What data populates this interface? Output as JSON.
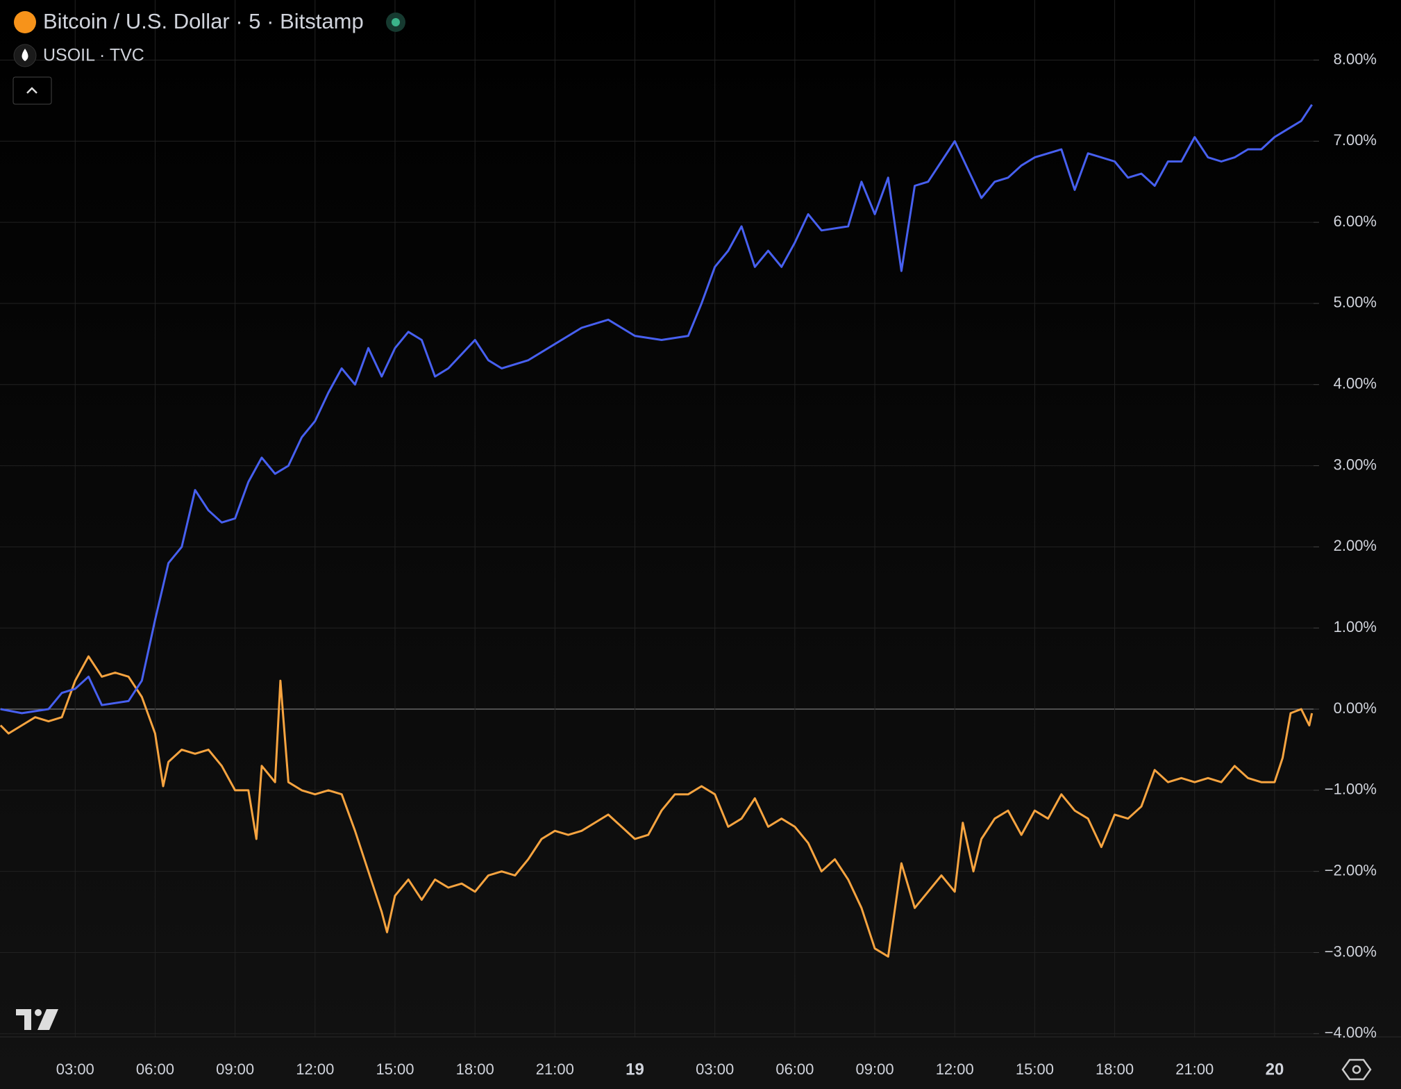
{
  "chart_data": {
    "type": "line",
    "legend": [
      "Bitcoin / U.S. Dollar · 5 · Bitstamp",
      "USOIL · TVC"
    ],
    "series": [
      {
        "name": "Bitcoin / U.S. Dollar · 5 · Bitstamp",
        "color": "#4760f0",
        "x": [
          0.2,
          1,
          2,
          2.5,
          3,
          3.5,
          4,
          5,
          5.5,
          6,
          6.5,
          7,
          7.5,
          8,
          8.5,
          9,
          9.5,
          10,
          10.5,
          11,
          11.5,
          12,
          12.5,
          13,
          13.5,
          14,
          14.5,
          15,
          15.5,
          16,
          16.5,
          17,
          18,
          18.5,
          19,
          20,
          21,
          22,
          23,
          24,
          25,
          26,
          26.5,
          27,
          27.5,
          28,
          28.5,
          29,
          29.5,
          30,
          30.5,
          31,
          32,
          32.5,
          33,
          33.5,
          34,
          34.5,
          35,
          35.5,
          36,
          36.5,
          37,
          37.5,
          38,
          38.5,
          39,
          39.5,
          40,
          40.5,
          41,
          42,
          42.5,
          43,
          43.5,
          44,
          44.5,
          45,
          45.5,
          46,
          46.5,
          47,
          47.5,
          48,
          48.5,
          49,
          49.4
        ],
        "values": [
          0,
          -0.05,
          0,
          0.2,
          0.25,
          0.4,
          0.05,
          0.1,
          0.35,
          1.1,
          1.8,
          2.0,
          2.7,
          2.45,
          2.3,
          2.35,
          2.8,
          3.1,
          2.9,
          3.0,
          3.35,
          3.55,
          3.9,
          4.2,
          4.0,
          4.45,
          4.1,
          4.45,
          4.65,
          4.55,
          4.1,
          4.2,
          4.55,
          4.3,
          4.2,
          4.3,
          4.5,
          4.7,
          4.8,
          4.6,
          4.55,
          4.6,
          5.0,
          5.45,
          5.65,
          5.95,
          5.45,
          5.65,
          5.45,
          5.75,
          6.1,
          5.9,
          5.95,
          6.5,
          6.1,
          6.55,
          5.4,
          6.45,
          6.5,
          6.75,
          7.0,
          6.65,
          6.3,
          6.5,
          6.55,
          6.7,
          6.8,
          6.85,
          6.9,
          6.4,
          6.85,
          6.75,
          6.55,
          6.6,
          6.45,
          6.75,
          6.75,
          7.05,
          6.8,
          6.75,
          6.8,
          6.9,
          6.9,
          7.05,
          7.15,
          7.25,
          7.45
        ]
      },
      {
        "name": "USOIL · TVC",
        "color": "#f7a440",
        "x": [
          0.2,
          0.5,
          1,
          1.5,
          2,
          2.5,
          3,
          3.5,
          4,
          4.5,
          5,
          5.5,
          6,
          6.3,
          6.5,
          7,
          7.5,
          8,
          8.5,
          9,
          9.5,
          9.8,
          10,
          10.5,
          10.7,
          11,
          11.5,
          12,
          12.5,
          13,
          13.5,
          14,
          14.5,
          14.7,
          15,
          15.5,
          16,
          16.5,
          17,
          17.5,
          18,
          18.5,
          19,
          19.5,
          20,
          20.5,
          21,
          21.5,
          22,
          22.5,
          23,
          23.5,
          24,
          24.5,
          25,
          25.5,
          26,
          26.5,
          27,
          27.5,
          28,
          28.5,
          29,
          29.5,
          30,
          30.5,
          31,
          31.5,
          32,
          32.5,
          33,
          33.5,
          34,
          34.5,
          35,
          35.5,
          36,
          36.3,
          36.7,
          37,
          37.5,
          38,
          38.5,
          39,
          39.5,
          40,
          40.5,
          41,
          41.5,
          42,
          42.5,
          43,
          43.5,
          44,
          44.5,
          45,
          45.5,
          46,
          46.5,
          47,
          47.5,
          48,
          48.3,
          48.6,
          49,
          49.3,
          49.4
        ],
        "values": [
          -0.2,
          -0.3,
          -0.2,
          -0.1,
          -0.15,
          -0.1,
          0.35,
          0.65,
          0.4,
          0.45,
          0.4,
          0.15,
          -0.3,
          -0.95,
          -0.65,
          -0.5,
          -0.55,
          -0.5,
          -0.7,
          -1.0,
          -1.0,
          -1.6,
          -0.7,
          -0.9,
          0.35,
          -0.9,
          -1.0,
          -1.05,
          -1.0,
          -1.05,
          -1.5,
          -2.0,
          -2.5,
          -2.75,
          -2.3,
          -2.1,
          -2.35,
          -2.1,
          -2.2,
          -2.15,
          -2.25,
          -2.05,
          -2.0,
          -2.05,
          -1.85,
          -1.6,
          -1.5,
          -1.55,
          -1.5,
          -1.4,
          -1.3,
          -1.45,
          -1.6,
          -1.55,
          -1.25,
          -1.05,
          -1.05,
          -0.95,
          -1.05,
          -1.45,
          -1.35,
          -1.1,
          -1.45,
          -1.35,
          -1.45,
          -1.65,
          -2.0,
          -1.85,
          -2.1,
          -2.45,
          -2.95,
          -3.05,
          -1.9,
          -2.45,
          -2.25,
          -2.05,
          -2.25,
          -1.4,
          -2.0,
          -1.6,
          -1.35,
          -1.25,
          -1.55,
          -1.25,
          -1.35,
          -1.05,
          -1.25,
          -1.35,
          -1.7,
          -1.3,
          -1.35,
          -1.2,
          -0.75,
          -0.9,
          -0.85,
          -0.9,
          -0.85,
          -0.9,
          -0.7,
          -0.85,
          -0.9,
          -0.9,
          -0.6,
          -0.05,
          0.0,
          -0.2,
          -0.05
        ]
      }
    ],
    "xlim": [
      0.18,
      49.46
    ],
    "ylim": [
      -4.04,
      8.74
    ],
    "xticks": [
      {
        "value": 3,
        "label": "03:00"
      },
      {
        "value": 6,
        "label": "06:00"
      },
      {
        "value": 9,
        "label": "09:00"
      },
      {
        "value": 12,
        "label": "12:00"
      },
      {
        "value": 15,
        "label": "15:00"
      },
      {
        "value": 18,
        "label": "18:00"
      },
      {
        "value": 21,
        "label": "21:00"
      },
      {
        "value": 24,
        "label": "19"
      },
      {
        "value": 27,
        "label": "03:00"
      },
      {
        "value": 30,
        "label": "06:00"
      },
      {
        "value": 33,
        "label": "09:00"
      },
      {
        "value": 36,
        "label": "12:00"
      },
      {
        "value": 39,
        "label": "15:00"
      },
      {
        "value": 42,
        "label": "18:00"
      },
      {
        "value": 45,
        "label": "21:00"
      },
      {
        "value": 48,
        "label": "20"
      }
    ],
    "yticks": [
      {
        "value": 8,
        "label": "8.00%"
      },
      {
        "value": 7,
        "label": "7.00%"
      },
      {
        "value": 6,
        "label": "6.00%"
      },
      {
        "value": 5,
        "label": "5.00%"
      },
      {
        "value": 4,
        "label": "4.00%"
      },
      {
        "value": 3,
        "label": "3.00%"
      },
      {
        "value": 2,
        "label": "2.00%"
      },
      {
        "value": 1,
        "label": "1.00%"
      },
      {
        "value": 0,
        "label": "0.00%"
      },
      {
        "value": -1,
        "label": "−1.00%"
      },
      {
        "value": -2,
        "label": "−2.00%"
      },
      {
        "value": -3,
        "label": "−3.00%"
      },
      {
        "value": -4,
        "label": "−4.00%"
      }
    ],
    "grid": true
  }
}
